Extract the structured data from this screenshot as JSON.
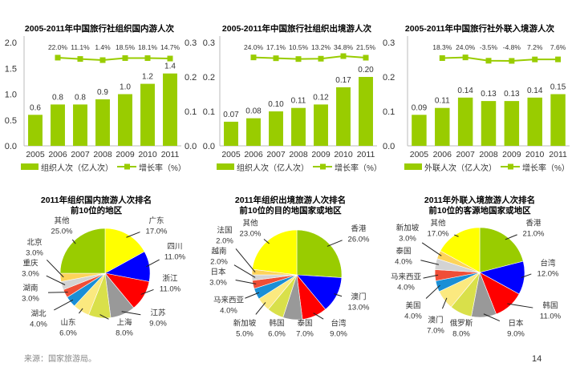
{
  "colors": {
    "bar": "#99cc00",
    "line": "#99cc00"
  },
  "footer": {
    "source": "来源：国家旅游局。",
    "page": "14"
  },
  "chart_data": [
    {
      "type": "bar",
      "title": "2005-2011年中国旅行社组织国内游人次",
      "categories": [
        "2005",
        "2006",
        "2007",
        "2008",
        "2009",
        "2010",
        "2011"
      ],
      "ylim": [
        0,
        2.0
      ],
      "yticks": [
        "0.0",
        "0.5",
        "1.0",
        "1.5",
        "2.0"
      ],
      "y2ticks": [
        "0.0",
        "0.1",
        "0.2",
        "0.3"
      ],
      "series": [
        {
          "name": "组织人次（亿人次）",
          "kind": "bar",
          "values": [
            0.6,
            0.8,
            0.8,
            0.9,
            1.0,
            1.2,
            1.4
          ],
          "labels": [
            "0.6",
            "0.8",
            "0.8",
            "0.9",
            "1.0",
            "1.2",
            "1.4"
          ]
        },
        {
          "name": "增长率（%）",
          "kind": "line",
          "values": [
            null,
            22.0,
            11.1,
            1.4,
            18.5,
            18.1,
            14.7
          ],
          "labels": [
            "",
            "22.0%",
            "11.1%",
            "1.4%",
            "18.5%",
            "18.1%",
            "14.7%"
          ]
        }
      ],
      "grid": false,
      "legend": "bottom"
    },
    {
      "type": "bar",
      "title": "2005-2011年中国旅行社组织出境游人次",
      "categories": [
        "2005",
        "2006",
        "2007",
        "2008",
        "2009",
        "2010",
        "2011"
      ],
      "ylim": [
        0,
        0.3
      ],
      "yticks": [
        "0.0",
        "0.1",
        "0.2",
        "0.3"
      ],
      "y2ticks": [
        "0.0",
        "0.1",
        "0.2",
        "0.3"
      ],
      "series": [
        {
          "name": "组织人次（亿人次）",
          "kind": "bar",
          "values": [
            0.07,
            0.08,
            0.1,
            0.11,
            0.12,
            0.17,
            0.2
          ],
          "labels": [
            "0.07",
            "0.08",
            "0.10",
            "0.11",
            "0.12",
            "0.17",
            "0.20"
          ]
        },
        {
          "name": "增长率（%）",
          "kind": "line",
          "values": [
            null,
            24.0,
            17.1,
            10.5,
            13.2,
            34.8,
            21.5
          ],
          "labels": [
            "",
            "24.0%",
            "17.1%",
            "10.5%",
            "13.2%",
            "34.8%",
            "21.5%"
          ]
        }
      ],
      "grid": false,
      "legend": "bottom"
    },
    {
      "type": "bar",
      "title": "2005-2011年中国旅行社外联入境游人次",
      "categories": [
        "2005",
        "2006",
        "2007",
        "2008",
        "2009",
        "2010",
        "2011"
      ],
      "ylim": [
        0,
        0.3
      ],
      "yticks": [],
      "y2ticks": [],
      "series": [
        {
          "name": "外联人次（亿人次）",
          "kind": "bar",
          "values": [
            0.09,
            0.11,
            0.14,
            0.13,
            0.13,
            0.14,
            0.15
          ],
          "labels": [
            "0.09",
            "0.11",
            "0.14",
            "0.13",
            "0.13",
            "0.14",
            "0.15"
          ]
        },
        {
          "name": "增长率（%）",
          "kind": "line",
          "values": [
            null,
            18.3,
            24.0,
            -3.5,
            -4.8,
            7.2,
            7.6
          ],
          "labels": [
            "",
            "18.3%",
            "24.0%",
            "-3.5%",
            "-4.8%",
            "7.2%",
            "7.6%"
          ]
        }
      ],
      "grid": false,
      "legend": "bottom"
    },
    {
      "type": "pie",
      "title": [
        "2011年组织国内旅游人次排名",
        "前10位的地区"
      ],
      "slices": [
        {
          "label": "广东",
          "value": 17.0,
          "text": "17.0%",
          "color": "#ffff00"
        },
        {
          "label": "四川",
          "value": 11.0,
          "text": "11.0%",
          "color": "#0000ff"
        },
        {
          "label": "浙江",
          "value": 11.0,
          "text": "11.0%",
          "color": "#ff0000"
        },
        {
          "label": "江苏",
          "value": 9.0,
          "text": "9.0%",
          "color": "#999999"
        },
        {
          "label": "上海",
          "value": 8.0,
          "text": "8.0%",
          "color": "#d9e04a"
        },
        {
          "label": "山东",
          "value": 6.0,
          "text": "6.0%",
          "color": "#fbe97f"
        },
        {
          "label": "湖北",
          "value": 4.0,
          "text": "4.0%",
          "color": "#1a8fd6"
        },
        {
          "label": "湖南",
          "value": 3.0,
          "text": "3.0%",
          "color": "#f04e37"
        },
        {
          "label": "重庆",
          "value": 3.0,
          "text": "3.0%",
          "color": "#d3d3d3"
        },
        {
          "label": "北京",
          "value": 3.0,
          "text": "3.0%",
          "color": "#fdd35a"
        },
        {
          "label": "其他",
          "value": 25.0,
          "text": "25.0%",
          "color": "#99cc00"
        }
      ]
    },
    {
      "type": "pie",
      "title": [
        "2011年组织出境旅游人次排名",
        "前10位的目的地国家或地区"
      ],
      "slices": [
        {
          "label": "香港",
          "value": 26.0,
          "text": "26.0%",
          "color": "#99cc00"
        },
        {
          "label": "澳门",
          "value": 13.0,
          "text": "13.0%",
          "color": "#0000ff"
        },
        {
          "label": "台湾",
          "value": 9.0,
          "text": "9.0%",
          "color": "#ff0000"
        },
        {
          "label": "泰国",
          "value": 7.0,
          "text": "7.0%",
          "color": "#999999"
        },
        {
          "label": "韩国",
          "value": 6.0,
          "text": "6.0%",
          "color": "#d9e04a"
        },
        {
          "label": "新加坡",
          "value": 5.0,
          "text": "5.0%",
          "color": "#fbe97f"
        },
        {
          "label": "马来西亚",
          "value": 4.0,
          "text": "4.0%",
          "color": "#1a8fd6"
        },
        {
          "label": "日本",
          "value": 3.0,
          "text": "3.0%",
          "color": "#f04e37"
        },
        {
          "label": "越南",
          "value": 2.0,
          "text": "2.0%",
          "color": "#d3d3d3"
        },
        {
          "label": "法国",
          "value": 2.0,
          "text": "2.0%",
          "color": "#fdd35a"
        },
        {
          "label": "其他",
          "value": 23.0,
          "text": "23.0%",
          "color": "#ffff00"
        }
      ]
    },
    {
      "type": "pie",
      "title": [
        "2011年外联入境旅游人次排名",
        "前10位的客源地国家或地区"
      ],
      "slices": [
        {
          "label": "香港",
          "value": 21.0,
          "text": "21.0%",
          "color": "#99cc00"
        },
        {
          "label": "台湾",
          "value": 12.0,
          "text": "12.0%",
          "color": "#0000ff"
        },
        {
          "label": "韩国",
          "value": 11.0,
          "text": "11.0%",
          "color": "#ff0000"
        },
        {
          "label": "日本",
          "value": 9.0,
          "text": "9.0%",
          "color": "#999999"
        },
        {
          "label": "俄罗斯",
          "value": 8.0,
          "text": "8.0%",
          "color": "#d9e04a"
        },
        {
          "label": "澳门",
          "value": 7.0,
          "text": "7.0%",
          "color": "#fbe97f"
        },
        {
          "label": "美国",
          "value": 4.0,
          "text": "4.0%",
          "color": "#1a8fd6"
        },
        {
          "label": "马来西亚",
          "value": 4.0,
          "text": "4.0%",
          "color": "#f04e37"
        },
        {
          "label": "泰国",
          "value": 4.0,
          "text": "4.0%",
          "color": "#d3d3d3"
        },
        {
          "label": "新加坡",
          "value": 3.0,
          "text": "3.0%",
          "color": "#fdd35a"
        },
        {
          "label": "其他",
          "value": 17.0,
          "text": "17.0%",
          "color": "#ffff00"
        }
      ]
    }
  ]
}
